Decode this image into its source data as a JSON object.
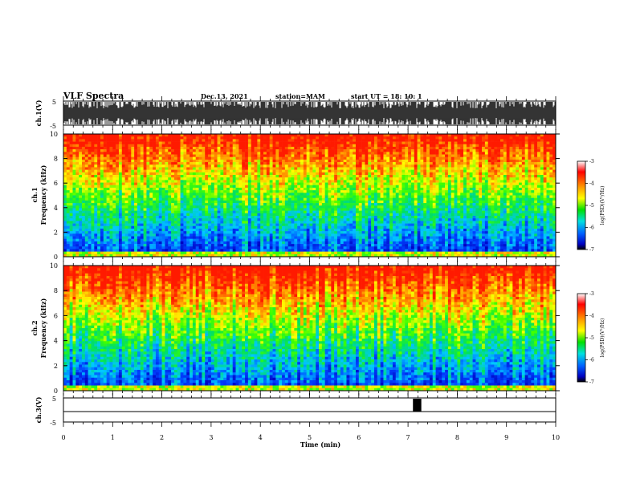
{
  "header": {
    "title": "VLF Spectra",
    "date": "Dec.13, 2021",
    "station": "station=MAM",
    "start": "start UT =  18: 10: 1"
  },
  "colors": {
    "spectrum_low": "#0000ff",
    "spectrum_mid": "#00e000",
    "spectrum_high": "#ff1f00",
    "waveform": "#000000"
  },
  "chart_data": [
    {
      "type": "line",
      "panel": "waveform-ch1",
      "ylabel": "ch.1(V)",
      "ylim": [
        -5,
        5
      ],
      "ytick_labels": [
        "5",
        "-5"
      ],
      "xlim": [
        0,
        10
      ]
    },
    {
      "type": "heatmap",
      "panel": "spectrogram-ch1",
      "ylabel_top": "ch.1",
      "ylabel": "Frequency (kHz)",
      "ylim": [
        0,
        10
      ],
      "ytick_labels": [
        "0",
        "2",
        "4",
        "6",
        "8",
        "10"
      ],
      "xlim": [
        0,
        10
      ],
      "colorbar": {
        "label": "log(PSD)(V²/Hz)",
        "range": [
          -7,
          -3
        ],
        "tick_labels": [
          "-3",
          "-4",
          "-5",
          "-6",
          "-7"
        ]
      }
    },
    {
      "type": "heatmap",
      "panel": "spectrogram-ch2",
      "ylabel_top": "ch.2",
      "ylabel": "Frequency (kHz)",
      "ylim": [
        0,
        10
      ],
      "ytick_labels": [
        "0",
        "2",
        "4",
        "6",
        "8",
        "10"
      ],
      "xlim": [
        0,
        10
      ],
      "colorbar": {
        "label": "log(PSD)(V²/Hz)",
        "range": [
          -7,
          -3
        ],
        "tick_labels": [
          "-3",
          "-4",
          "-5",
          "-6",
          "-7"
        ]
      }
    },
    {
      "type": "line",
      "panel": "waveform-ch3",
      "ylabel": "ch.3(V)",
      "ylim": [
        -5,
        5
      ],
      "ytick_labels": [
        "5",
        "-5"
      ],
      "xlim": [
        0,
        10
      ],
      "pulse": {
        "start_min": 7.1,
        "end_min": 7.27
      },
      "xlabel": "Time (min)",
      "xtick_labels": [
        "0",
        "1",
        "2",
        "3",
        "4",
        "5",
        "6",
        "7",
        "8",
        "9",
        "10"
      ]
    }
  ]
}
